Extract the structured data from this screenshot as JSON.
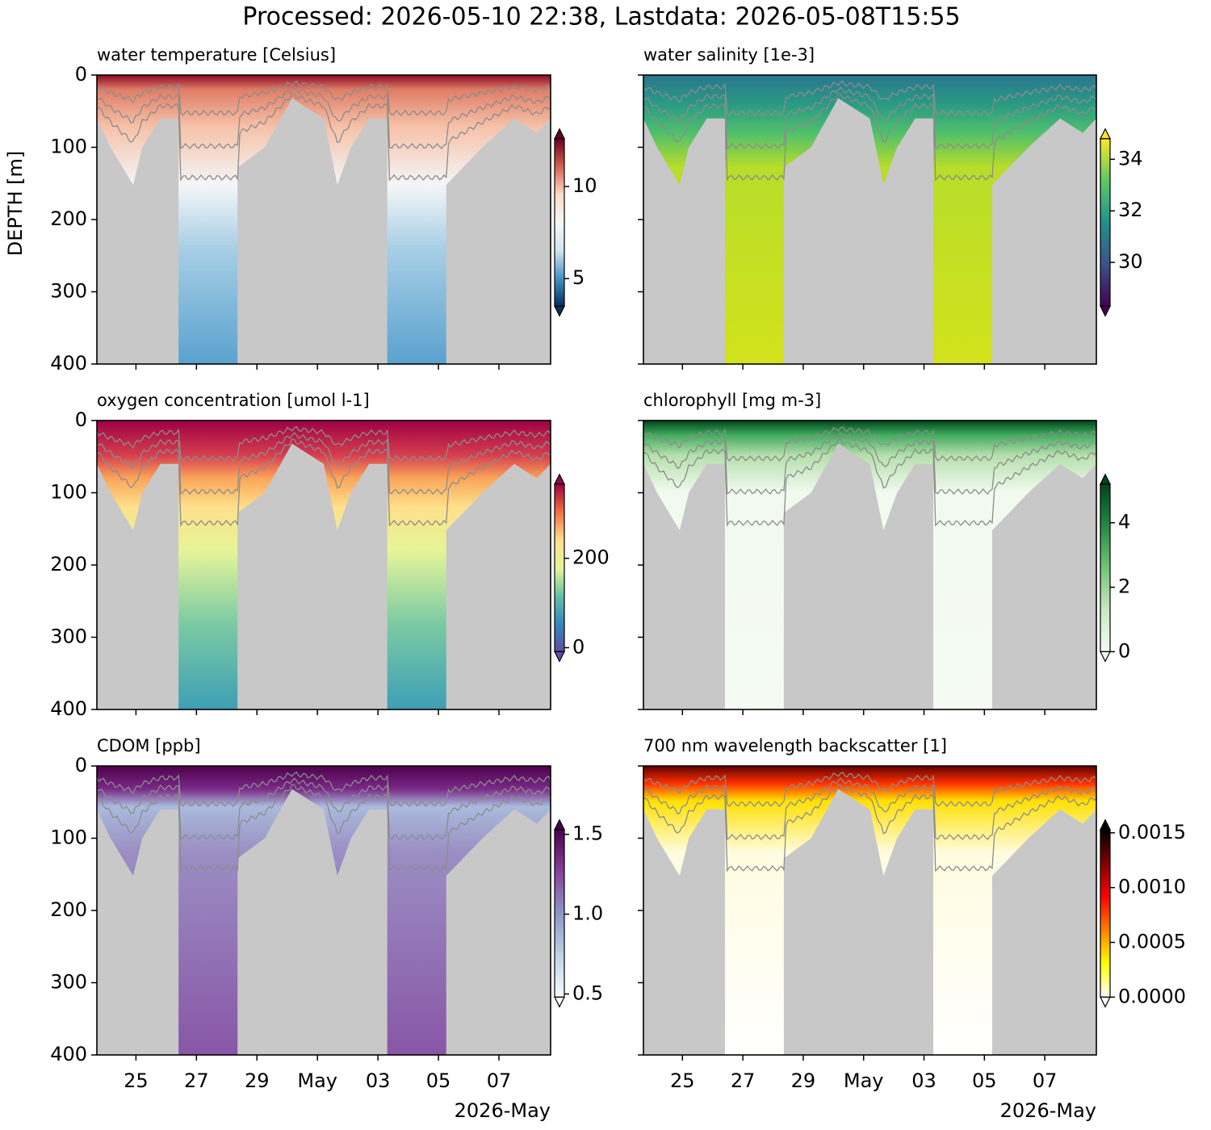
{
  "title": "Processed: 2026-05-10 22:38, Lastdata: 2026-05-08T15:55",
  "chart_data": [
    {
      "type": "heatmap",
      "title": "water temperature [Celsius]",
      "ylabel": "DEPTH [m]",
      "colormap": "RdBu_r",
      "ylim": [
        400,
        0
      ],
      "yticks": [
        0,
        100,
        200,
        300,
        400
      ],
      "xlim": [
        "2026-04-23T17:00",
        "2026-05-08T17:00"
      ],
      "xticks": [
        {
          "value": "2026-04-25T00:00",
          "label": "25"
        },
        {
          "value": "2026-04-27T00:00",
          "label": "27"
        },
        {
          "value": "2026-04-29T00:00",
          "label": "29"
        },
        {
          "value": "2026-05-01T00:00",
          "label": "May"
        },
        {
          "value": "2026-05-03T00:00",
          "label": "03"
        },
        {
          "value": "2026-05-05T00:00",
          "label": "05"
        },
        {
          "value": "2026-05-07T00:00",
          "label": "07"
        }
      ],
      "clim": [
        3.5,
        12.6
      ],
      "cticks": [
        5,
        10
      ]
    },
    {
      "type": "heatmap",
      "title": "water salinity [1e-3]",
      "colormap": "viridis",
      "ylim": [
        400,
        0
      ],
      "yticks": [
        0,
        100,
        200,
        300,
        400
      ],
      "xlim": [
        "2026-04-23T17:00",
        "2026-05-08T17:00"
      ],
      "xticks": [
        {
          "value": "2026-04-25T00:00",
          "label": "25"
        },
        {
          "value": "2026-04-27T00:00",
          "label": "27"
        },
        {
          "value": "2026-04-29T00:00",
          "label": "29"
        },
        {
          "value": "2026-05-01T00:00",
          "label": "May"
        },
        {
          "value": "2026-05-03T00:00",
          "label": "03"
        },
        {
          "value": "2026-05-05T00:00",
          "label": "05"
        },
        {
          "value": "2026-05-07T00:00",
          "label": "07"
        }
      ],
      "clim": [
        28.3,
        34.8
      ],
      "cticks": [
        30,
        32,
        34
      ]
    },
    {
      "type": "heatmap",
      "title": "oxygen concentration [umol l-1]",
      "colormap": "Spectral_r",
      "ylim": [
        400,
        0
      ],
      "yticks": [
        0,
        100,
        200,
        300,
        400
      ],
      "xlim": [
        "2026-04-23T17:00",
        "2026-05-08T17:00"
      ],
      "xticks": [
        {
          "value": "2026-04-25T00:00",
          "label": "25"
        },
        {
          "value": "2026-04-27T00:00",
          "label": "27"
        },
        {
          "value": "2026-04-29T00:00",
          "label": "29"
        },
        {
          "value": "2026-05-01T00:00",
          "label": "May"
        },
        {
          "value": "2026-05-03T00:00",
          "label": "03"
        },
        {
          "value": "2026-05-05T00:00",
          "label": "05"
        },
        {
          "value": "2026-05-07T00:00",
          "label": "07"
        }
      ],
      "clim": [
        -9,
        366
      ],
      "cticks": [
        0,
        200
      ]
    },
    {
      "type": "heatmap",
      "title": "chlorophyll [mg m-3]",
      "colormap": "Greens",
      "ylim": [
        400,
        0
      ],
      "yticks": [
        0,
        100,
        200,
        300,
        400
      ],
      "xlim": [
        "2026-04-23T17:00",
        "2026-05-08T17:00"
      ],
      "xticks": [
        {
          "value": "2026-04-25T00:00",
          "label": "25"
        },
        {
          "value": "2026-04-27T00:00",
          "label": "27"
        },
        {
          "value": "2026-04-29T00:00",
          "label": "29"
        },
        {
          "value": "2026-05-01T00:00",
          "label": "May"
        },
        {
          "value": "2026-05-03T00:00",
          "label": "03"
        },
        {
          "value": "2026-05-05T00:00",
          "label": "05"
        },
        {
          "value": "2026-05-07T00:00",
          "label": "07"
        }
      ],
      "clim": [
        0,
        5.2
      ],
      "cticks": [
        0,
        2,
        4
      ]
    },
    {
      "type": "heatmap",
      "title": "CDOM [ppb]",
      "colormap": "BuPu",
      "xlabel": "2026-May",
      "ylim": [
        400,
        0
      ],
      "yticks": [
        0,
        100,
        200,
        300,
        400
      ],
      "xlim": [
        "2026-04-23T17:00",
        "2026-05-08T17:00"
      ],
      "xticks": [
        {
          "value": "2026-04-25T00:00",
          "label": "25"
        },
        {
          "value": "2026-04-27T00:00",
          "label": "27"
        },
        {
          "value": "2026-04-29T00:00",
          "label": "29"
        },
        {
          "value": "2026-05-01T00:00",
          "label": "May"
        },
        {
          "value": "2026-05-03T00:00",
          "label": "03"
        },
        {
          "value": "2026-05-05T00:00",
          "label": "05"
        },
        {
          "value": "2026-05-07T00:00",
          "label": "07"
        }
      ],
      "clim": [
        0.48,
        1.53
      ],
      "cticks": [
        0.5,
        {
          "value": 1,
          "label": "1.0"
        },
        1.5
      ]
    },
    {
      "type": "heatmap",
      "title": "700 nm wavelength backscatter [1]",
      "colormap": "hot_r",
      "xlabel": "2026-May",
      "ylim": [
        400,
        0
      ],
      "yticks": [
        0,
        100,
        200,
        300,
        400
      ],
      "xlim": [
        "2026-04-23T17:00",
        "2026-05-08T17:00"
      ],
      "xticks": [
        {
          "value": "2026-04-25T00:00",
          "label": "25"
        },
        {
          "value": "2026-04-27T00:00",
          "label": "27"
        },
        {
          "value": "2026-04-29T00:00",
          "label": "29"
        },
        {
          "value": "2026-05-01T00:00",
          "label": "May"
        },
        {
          "value": "2026-05-03T00:00",
          "label": "03"
        },
        {
          "value": "2026-05-05T00:00",
          "label": "05"
        },
        {
          "value": "2026-05-07T00:00",
          "label": "07"
        }
      ],
      "clim": [
        0,
        0.00153
      ],
      "cticks": [
        {
          "value": 0,
          "label": "0.0000"
        },
        0.0005,
        {
          "value": 0.001,
          "label": "0.0010"
        },
        0.0015
      ]
    }
  ]
}
